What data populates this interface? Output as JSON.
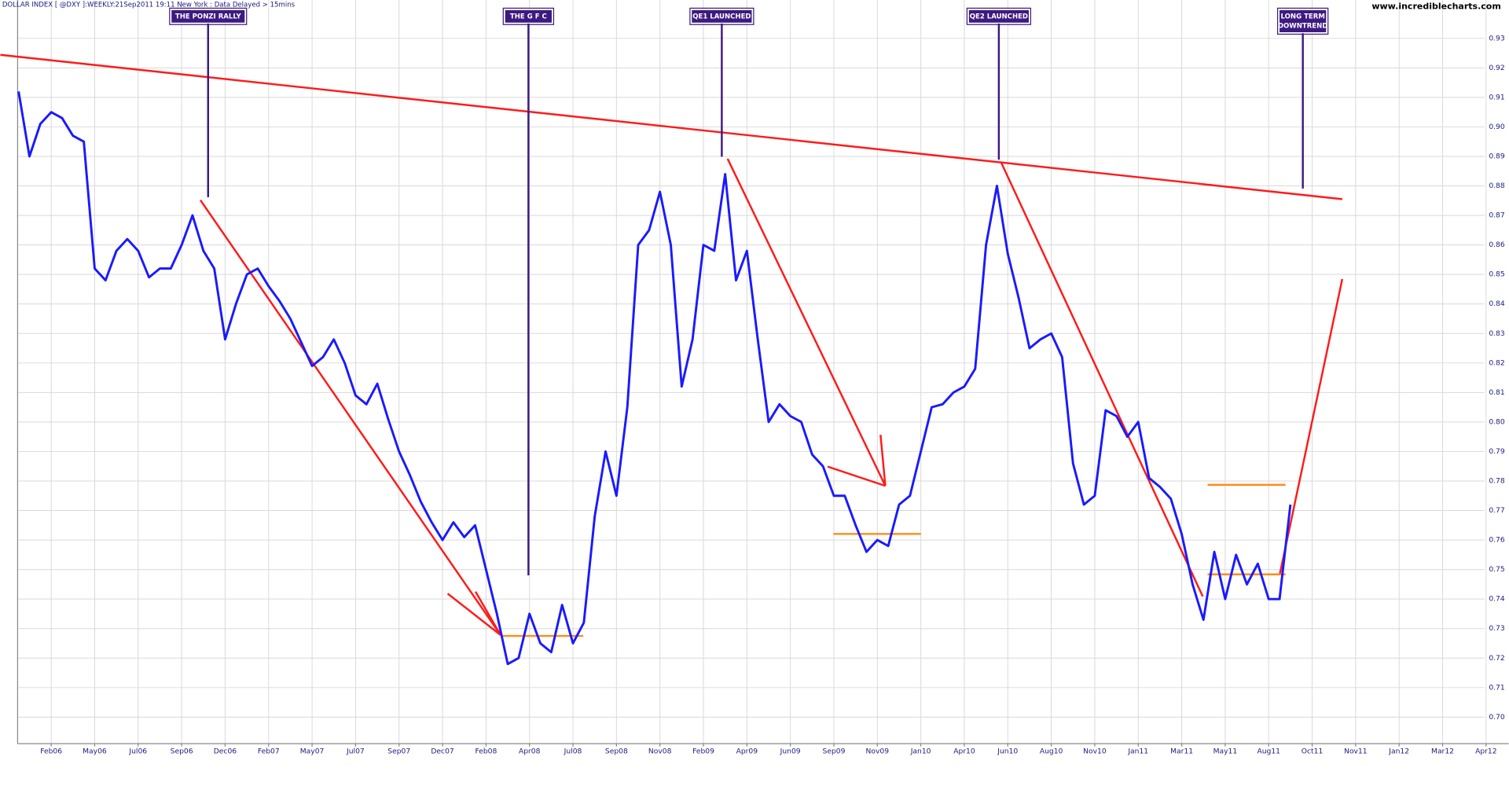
{
  "chart_data": {
    "type": "line",
    "title": "DOLLAR INDEX [ @DXY ]:WEEKLY:21Sep2011 19:11 New York  : Data Delayed > 15mins",
    "source": "www.incrediblecharts.com",
    "color": "#1a1aff",
    "grid": true,
    "categories": [
      null,
      null,
      null,
      "Feb06",
      null,
      null,
      null,
      "May06",
      null,
      null,
      null,
      "Jul06",
      null,
      null,
      null,
      "Sep06",
      null,
      null,
      null,
      "Dec06",
      null,
      null,
      null,
      "Feb07",
      null,
      null,
      null,
      "May07",
      null,
      null,
      null,
      "Jul07",
      null,
      null,
      null,
      "Sep07",
      null,
      null,
      null,
      "Dec07",
      null,
      null,
      null,
      "Feb08",
      null,
      null,
      null,
      "Apr08",
      null,
      null,
      null,
      "Jul08",
      null,
      null,
      null,
      "Sep08",
      null,
      null,
      null,
      "Nov08",
      null,
      null,
      null,
      "Feb09",
      null,
      null,
      null,
      "Apr09",
      null,
      null,
      null,
      "Jun09",
      null,
      null,
      null,
      "Sep09",
      null,
      null,
      null,
      "Nov09",
      null,
      null,
      null,
      "Jan10",
      null,
      null,
      null,
      "Apr10",
      null,
      null,
      null,
      "Jun10",
      null,
      null,
      null,
      "Aug10",
      null,
      null,
      null,
      "Nov10",
      null,
      null,
      null,
      "Jan11",
      null,
      null,
      null,
      "Mar11",
      null,
      null,
      null,
      "May11",
      null,
      null,
      null,
      "Aug11",
      null,
      null,
      null,
      "Oct11",
      null,
      null,
      null,
      "Nov11",
      null,
      null,
      null,
      "Jan12",
      null,
      null,
      null,
      "Mar12",
      null,
      null,
      null,
      "Apr12",
      null
    ],
    "values": [
      0.912,
      0.89,
      0.901,
      0.905,
      0.903,
      0.897,
      0.895,
      0.852,
      0.848,
      0.858,
      0.862,
      0.858,
      0.849,
      0.852,
      0.852,
      0.86,
      0.87,
      0.858,
      0.852,
      0.828,
      0.84,
      0.85,
      0.852,
      0.846,
      0.841,
      0.835,
      0.827,
      0.819,
      0.822,
      0.828,
      0.82,
      0.809,
      0.806,
      0.813,
      0.801,
      0.79,
      0.782,
      0.773,
      0.766,
      0.76,
      0.766,
      0.761,
      0.765,
      0.75,
      0.735,
      0.718,
      0.72,
      0.735,
      0.725,
      0.722,
      0.738,
      0.725,
      0.732,
      0.768,
      0.79,
      0.775,
      0.805,
      0.86,
      0.865,
      0.878,
      0.86,
      0.812,
      0.828,
      0.86,
      0.858,
      0.884,
      0.848,
      0.858,
      0.828,
      0.8,
      0.806,
      0.802,
      0.8,
      0.789,
      0.785,
      0.775,
      0.775,
      0.765,
      0.756,
      0.76,
      0.758,
      0.772,
      0.775,
      0.79,
      0.805,
      0.806,
      0.81,
      0.812,
      0.818,
      0.86,
      0.88,
      0.857,
      0.842,
      0.825,
      0.828,
      0.83,
      0.822,
      0.786,
      0.772,
      0.775,
      0.804,
      0.802,
      0.795,
      0.8,
      0.781,
      0.778,
      0.774,
      0.762,
      0.745,
      0.733,
      0.756,
      0.74,
      0.755,
      0.745,
      0.752,
      0.74,
      0.74,
      0.772,
      null,
      null,
      null,
      null,
      null,
      null,
      null,
      null,
      null,
      null,
      null,
      null,
      null,
      null,
      null,
      null,
      null,
      null,
      null
    ],
    "ylim": [
      0.691,
      0.943
    ],
    "yticks": [
      {
        "value": 0.7,
        "label": "0.70"
      },
      0.71,
      0.72,
      0.73,
      0.74,
      0.75,
      0.76,
      0.77,
      0.78,
      0.79,
      {
        "value": 0.8,
        "label": "0.80"
      },
      0.81,
      0.82,
      0.83,
      0.84,
      0.85,
      0.86,
      0.87,
      0.88,
      0.89,
      {
        "value": 0.9,
        "label": "0.90"
      },
      0.91,
      0.92,
      0.93
    ],
    "annotations": [
      [
        "THE PONZI RALLY"
      ],
      [
        "THE G F C"
      ],
      [
        "QE1 LAUNCHED"
      ],
      [
        "QE2 LAUNCHED"
      ],
      [
        "LONG TERM",
        "DOWNTREND"
      ]
    ]
  }
}
